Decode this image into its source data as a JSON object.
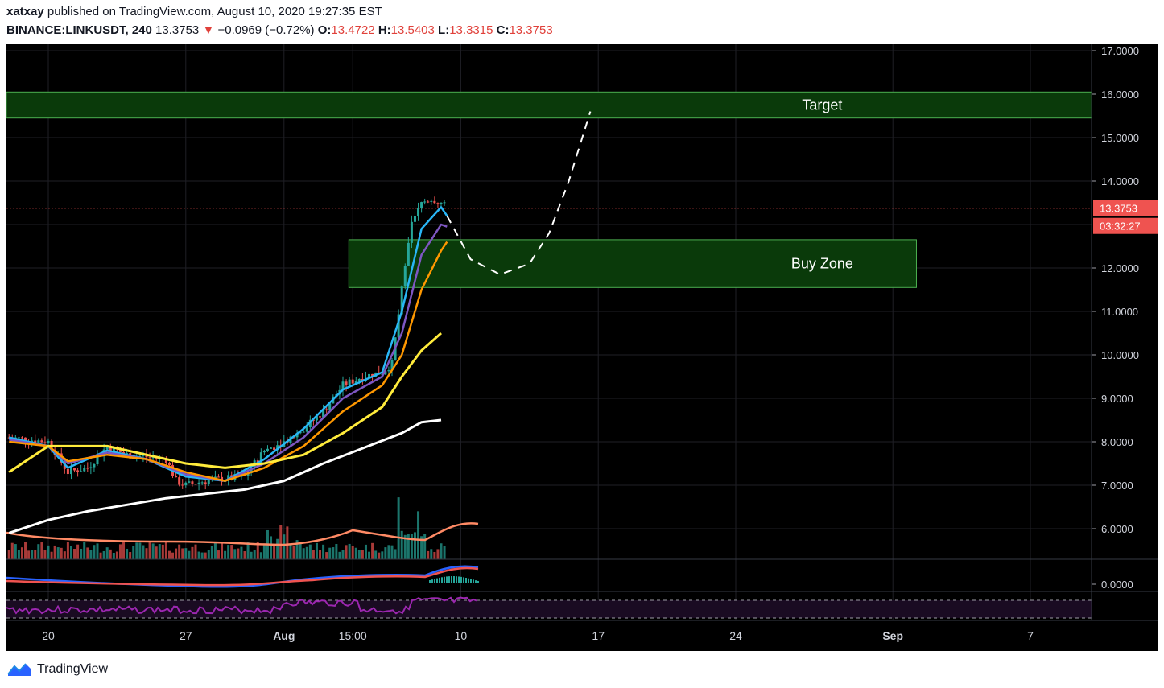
{
  "header": {
    "author": "xatxay",
    "published_text": "published on TradingView.com, August 10, 2020 19:27:35 EST",
    "symbol": "BINANCE:LINKUSDT, 240",
    "last": "13.3753",
    "change_arrow": "▼",
    "change": "−0.0969 (−0.72%)",
    "o_label": "O:",
    "o": "13.4722",
    "h_label": "H:",
    "h": "13.5403",
    "l_label": "L:",
    "l": "13.3315",
    "c_label": "C:",
    "c": "13.3753"
  },
  "price_axis": {
    "ticks": [
      "17.0000",
      "16.0000",
      "15.0000",
      "14.0000",
      "12.0000",
      "11.0000",
      "10.0000",
      "9.0000",
      "8.0000",
      "7.0000",
      "6.0000",
      "0.0000"
    ],
    "last_price_label": "13.3753",
    "countdown_label": "03:32:27"
  },
  "time_axis": {
    "ticks": [
      "20",
      "27",
      "Aug",
      "15:00",
      "10",
      "17",
      "24",
      "Sep",
      "7"
    ]
  },
  "annotations": {
    "target_label": "Target",
    "buy_zone_label": "Buy Zone"
  },
  "colors": {
    "background": "#000000",
    "up": "#26a69a",
    "down": "#ef5350",
    "ema_fast": "#29b6f6",
    "ema_mid": "#7e57c2",
    "ema_orange": "#ff9800",
    "ema_yellow": "#ffeb3b",
    "ema_white": "#ffffff",
    "zone_fill": "#0a3a0a",
    "zone_border": "#4caf50",
    "rsi": "#9c27b0",
    "last_price_tag": "#ef5350"
  },
  "chart_data": {
    "type": "candlestick",
    "symbol": "BINANCE:LINKUSDT",
    "interval": "240",
    "ylim": [
      5.3,
      17.2
    ],
    "price_path": [
      [
        18.0,
        8.1
      ],
      [
        19.0,
        8.05
      ],
      [
        20.0,
        8.0
      ],
      [
        21.0,
        7.3
      ],
      [
        22.0,
        7.4
      ],
      [
        23.0,
        7.9
      ],
      [
        24.0,
        7.7
      ],
      [
        25.0,
        7.65
      ],
      [
        26.0,
        7.6
      ],
      [
        26.5,
        7.1
      ],
      [
        27.0,
        7.0
      ],
      [
        28.0,
        7.1
      ],
      [
        29.0,
        7.15
      ],
      [
        30.0,
        7.2
      ],
      [
        31.0,
        7.8
      ],
      [
        32.0,
        8.0
      ],
      [
        33.0,
        8.3
      ],
      [
        34.0,
        8.7
      ],
      [
        35.0,
        9.3
      ],
      [
        36.0,
        9.5
      ],
      [
        37.0,
        9.6
      ],
      [
        37.5,
        9.8
      ],
      [
        38.0,
        11.5
      ],
      [
        38.5,
        13.0
      ],
      [
        39.0,
        13.5
      ],
      [
        39.5,
        13.6
      ],
      [
        40.0,
        13.5
      ],
      [
        40.3,
        13.3753
      ]
    ],
    "ema_lines": [
      {
        "color": "ema_fast",
        "points": [
          [
            18,
            8.1
          ],
          [
            20,
            7.9
          ],
          [
            21,
            7.4
          ],
          [
            23,
            7.8
          ],
          [
            25,
            7.6
          ],
          [
            27,
            7.2
          ],
          [
            29,
            7.1
          ],
          [
            31,
            7.6
          ],
          [
            33,
            8.3
          ],
          [
            35,
            9.2
          ],
          [
            37,
            9.6
          ],
          [
            38,
            11.0
          ],
          [
            39,
            12.9
          ],
          [
            40,
            13.4
          ],
          [
            40.3,
            13.2
          ]
        ]
      },
      {
        "color": "ema_mid",
        "points": [
          [
            18,
            8.05
          ],
          [
            20,
            7.9
          ],
          [
            21,
            7.5
          ],
          [
            23,
            7.75
          ],
          [
            25,
            7.6
          ],
          [
            27,
            7.25
          ],
          [
            29,
            7.1
          ],
          [
            31,
            7.5
          ],
          [
            33,
            8.1
          ],
          [
            35,
            9.0
          ],
          [
            37,
            9.5
          ],
          [
            38,
            10.5
          ],
          [
            39,
            12.3
          ],
          [
            40,
            13.0
          ],
          [
            40.3,
            12.95
          ]
        ]
      },
      {
        "color": "ema_orange",
        "points": [
          [
            18,
            8.0
          ],
          [
            20,
            7.9
          ],
          [
            21,
            7.55
          ],
          [
            23,
            7.7
          ],
          [
            25,
            7.6
          ],
          [
            27,
            7.3
          ],
          [
            29,
            7.1
          ],
          [
            31,
            7.4
          ],
          [
            33,
            7.9
          ],
          [
            35,
            8.7
          ],
          [
            37,
            9.3
          ],
          [
            38,
            10.0
          ],
          [
            39,
            11.5
          ],
          [
            40,
            12.4
          ],
          [
            40.3,
            12.6
          ]
        ]
      },
      {
        "color": "ema_yellow",
        "points": [
          [
            18,
            7.3
          ],
          [
            20,
            7.9
          ],
          [
            21,
            7.9
          ],
          [
            23,
            7.9
          ],
          [
            25,
            7.7
          ],
          [
            27,
            7.5
          ],
          [
            29,
            7.4
          ],
          [
            31,
            7.5
          ],
          [
            33,
            7.7
          ],
          [
            35,
            8.2
          ],
          [
            37,
            8.8
          ],
          [
            38,
            9.5
          ],
          [
            39,
            10.1
          ],
          [
            40,
            10.5
          ]
        ]
      },
      {
        "color": "ema_white",
        "points": [
          [
            18,
            5.9
          ],
          [
            20,
            6.2
          ],
          [
            22,
            6.4
          ],
          [
            24,
            6.55
          ],
          [
            26,
            6.7
          ],
          [
            28,
            6.8
          ],
          [
            30,
            6.9
          ],
          [
            32,
            7.1
          ],
          [
            34,
            7.5
          ],
          [
            36,
            7.85
          ],
          [
            38,
            8.2
          ],
          [
            39,
            8.45
          ],
          [
            40,
            8.5
          ]
        ]
      }
    ],
    "projection": {
      "style": "dashed",
      "points": [
        [
          40.3,
          13.2
        ],
        [
          41.5,
          12.2
        ],
        [
          43,
          11.85
        ],
        [
          44.5,
          12.1
        ],
        [
          45.5,
          12.8
        ],
        [
          46.5,
          14.0
        ],
        [
          47.6,
          15.6
        ]
      ]
    },
    "zones": [
      {
        "label": "Target",
        "from": 15.45,
        "to": 16.05
      },
      {
        "label": "Buy Zone",
        "from": 11.55,
        "to": 12.65
      }
    ]
  }
}
